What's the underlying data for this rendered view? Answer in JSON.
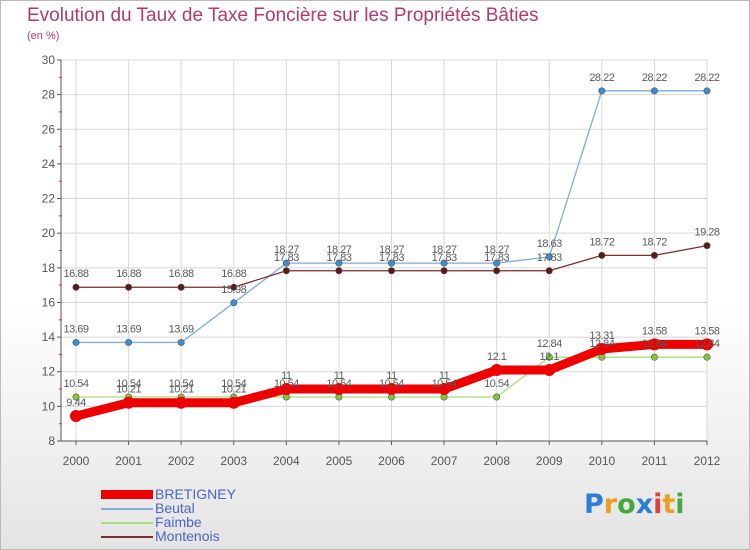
{
  "title": "Evolution du Taux de Taxe Foncière sur les Propriétés Bâties",
  "subtitle": "(en %)",
  "logo": {
    "text": "Proxiti",
    "colors": [
      "#2a7fd4",
      "#e8a020",
      "#44a83c",
      "#2a7fd4",
      "#e04040",
      "#e8a020",
      "#44a83c"
    ]
  },
  "chart_data": {
    "type": "line",
    "title": "Evolution du Taux de Taxe Foncière sur les Propriétés Bâties",
    "ylabel": "(en %)",
    "xlabel": "",
    "categories": [
      "2000",
      "2001",
      "2002",
      "2003",
      "2004",
      "2005",
      "2006",
      "2007",
      "2008",
      "2009",
      "2010",
      "2011",
      "2012"
    ],
    "ylim": [
      8,
      30
    ],
    "yticks": [
      8,
      10,
      12,
      14,
      16,
      18,
      20,
      22,
      24,
      26,
      28,
      30
    ],
    "grid": true,
    "legend_position": "bottom-left",
    "series": [
      {
        "name": "Beutal",
        "color": "#7faed4",
        "marker": "#3b8fd1",
        "values": [
          13.69,
          13.69,
          13.69,
          15.98,
          18.27,
          18.27,
          18.27,
          18.27,
          18.27,
          18.63,
          28.22,
          28.22,
          28.22
        ],
        "labels": [
          "13.69",
          "13.69",
          "13.69",
          "15.98",
          "18.27",
          "18.27",
          "18.27",
          "18.27",
          "18.27",
          "18.63",
          "28.22",
          "28.22",
          "28.22"
        ]
      },
      {
        "name": "Montenois",
        "color": "#7a2d2d",
        "marker": "#5a1a1a",
        "values": [
          16.88,
          16.88,
          16.88,
          16.88,
          17.83,
          17.83,
          17.83,
          17.83,
          17.83,
          17.83,
          18.72,
          18.72,
          19.28
        ],
        "labels": [
          "16.88",
          "16.88",
          "16.88",
          "16.88",
          "17.83",
          "17.83",
          "17.83",
          "17.83",
          "17.83",
          "17.83",
          "18.72",
          "18.72",
          "19.28"
        ]
      },
      {
        "name": "Faimbe",
        "color": "#a8dc7c",
        "marker": "#7fc83a",
        "values": [
          10.54,
          10.54,
          10.54,
          10.54,
          10.54,
          10.54,
          10.54,
          10.54,
          10.54,
          12.84,
          12.84,
          12.84,
          12.84
        ],
        "labels": [
          "10.54",
          "10.54",
          "10.54",
          "10.54",
          "10.54",
          "10.54",
          "10.54",
          "10.54",
          "10.54",
          "12.84",
          "12.84",
          "12.84",
          "12.84"
        ]
      },
      {
        "name": "BRETIGNEY",
        "color": "#ee0000",
        "marker": "#ee0000",
        "values": [
          9.44,
          10.21,
          10.21,
          10.21,
          11,
          11,
          11,
          11,
          12.1,
          12.1,
          13.31,
          13.58,
          13.58
        ],
        "labels": [
          "9.44",
          "10.21",
          "10.21",
          "10.21",
          "11",
          "11",
          "11",
          "11",
          "12.1",
          "12.1",
          "13.31",
          "13.58",
          "13.58"
        ]
      }
    ]
  }
}
